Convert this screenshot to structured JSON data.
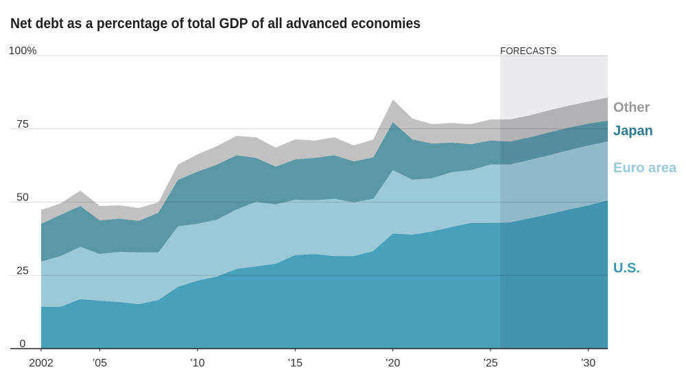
{
  "chart_data": {
    "type": "area",
    "stacked": true,
    "title": "Net debt as a percentage of total GDP of all advanced economies",
    "x": [
      2002,
      2003,
      2004,
      2005,
      2006,
      2007,
      2008,
      2009,
      2010,
      2011,
      2012,
      2013,
      2014,
      2015,
      2016,
      2017,
      2018,
      2019,
      2020,
      2021,
      2022,
      2023,
      2024,
      2025,
      2026,
      2027,
      2028,
      2029,
      2030,
      2031
    ],
    "xlim": [
      2002,
      2031
    ],
    "ylim": [
      0,
      100
    ],
    "x_ticks": [
      2002,
      2005,
      2010,
      2015,
      2020,
      2025,
      2030
    ],
    "x_tick_labels": [
      "2002",
      "’05",
      "’10",
      "’15",
      "’20",
      "’25",
      "’30"
    ],
    "y_ticks": [
      0,
      25,
      50,
      75,
      100
    ],
    "y_tick_labels": [
      "0",
      "25",
      "50",
      "75",
      "100%"
    ],
    "grid": true,
    "legend": "right",
    "forecast": {
      "label": "FORECASTS",
      "start": 2025.5,
      "end": 2031
    },
    "series": [
      {
        "name": "U.S.",
        "color": "#48a0b9",
        "label_color": "#3a97b0",
        "values": [
          14.3,
          14.3,
          16.9,
          16.4,
          15.9,
          15.2,
          16.6,
          21.1,
          23.2,
          24.6,
          27.2,
          28.1,
          29.0,
          31.9,
          32.3,
          31.6,
          31.6,
          33.3,
          39.3,
          38.9,
          40.0,
          41.5,
          42.9,
          42.9,
          43.1,
          44.5,
          45.9,
          47.5,
          48.9,
          50.6
        ]
      },
      {
        "name": "Euro area",
        "color": "#9cc9d7",
        "label_color": "#9dcadb",
        "values": [
          15.4,
          17.3,
          17.8,
          15.9,
          17.1,
          17.6,
          16.2,
          20.6,
          19.4,
          19.4,
          20.3,
          22.0,
          20.2,
          18.9,
          18.3,
          19.5,
          18.3,
          17.8,
          21.6,
          18.7,
          18.1,
          18.7,
          18.0,
          19.9,
          19.7,
          19.9,
          20.1,
          20.2,
          20.4,
          20.1
        ]
      },
      {
        "name": "Japan",
        "color": "#5a98a6",
        "label_color": "#2c7a90",
        "values": [
          12.9,
          14.1,
          14.0,
          11.5,
          11.3,
          10.8,
          13.6,
          15.9,
          17.8,
          18.8,
          18.5,
          15.0,
          12.9,
          13.8,
          14.5,
          14.9,
          14.0,
          14.2,
          16.4,
          13.8,
          11.9,
          10.1,
          8.9,
          8.2,
          7.9,
          7.7,
          7.8,
          7.7,
          7.5,
          7.1
        ]
      },
      {
        "name": "Other",
        "color": "#c1c1c1",
        "label_color": "#9a9a9a",
        "values": [
          4.7,
          3.9,
          5.2,
          4.9,
          4.6,
          4.4,
          3.5,
          5.2,
          5.9,
          6.3,
          6.6,
          7.0,
          6.5,
          6.8,
          5.9,
          6.1,
          5.4,
          6.1,
          7.7,
          7.1,
          6.6,
          6.7,
          6.8,
          7.2,
          7.5,
          7.5,
          7.5,
          7.5,
          7.5,
          7.9
        ]
      }
    ]
  }
}
